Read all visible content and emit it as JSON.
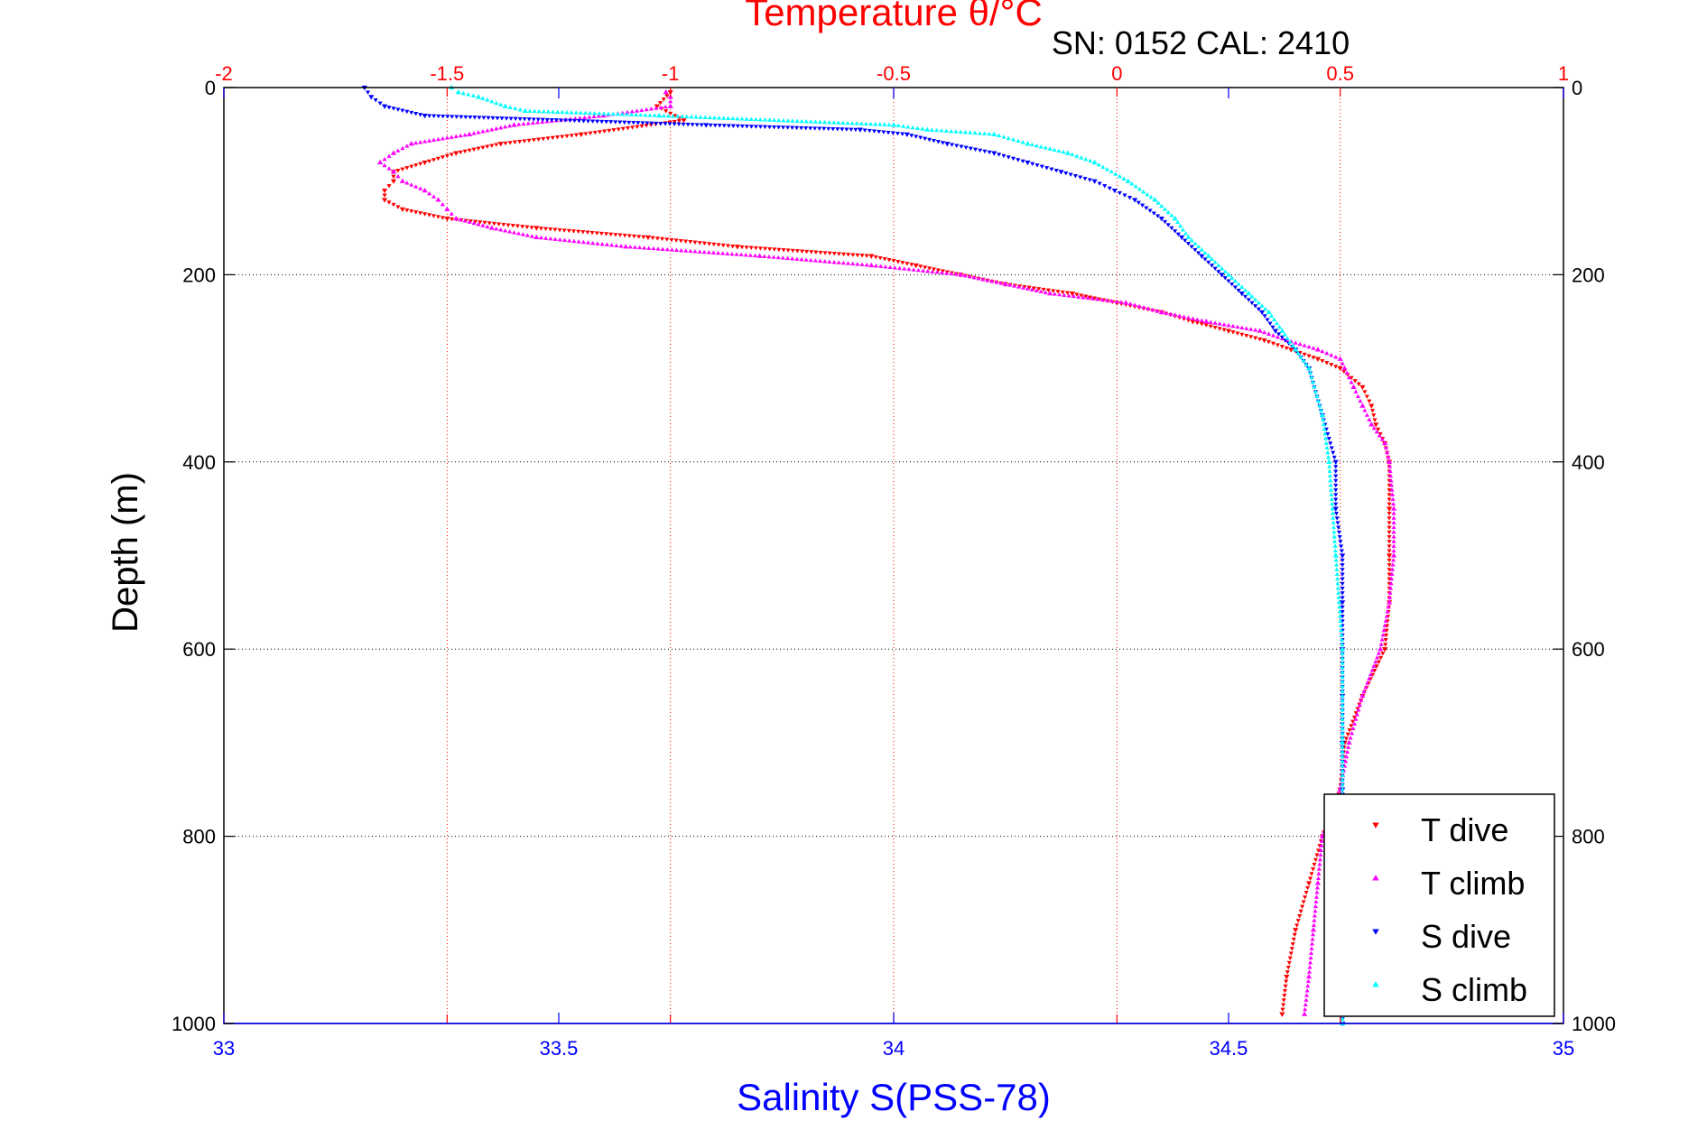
{
  "chart_data": {
    "type": "scatter",
    "title": "Temperature θ/°C",
    "subtitle": "SN: 0152  CAL: 2410",
    "xlabel_top": "Temperature θ/°C",
    "xlabel_bottom": "Salinity S(PSS-78)",
    "ylabel": "Depth (m)",
    "temperature_axis": {
      "lim": [
        -2,
        1
      ],
      "ticks": [
        -2,
        -1.5,
        -1,
        -0.5,
        0,
        0.5,
        1
      ],
      "tick_labels": [
        "-2",
        "-1.5",
        "-1",
        "-0.5",
        "0",
        "0.5",
        "1"
      ],
      "color": "#ff0000"
    },
    "salinity_axis": {
      "lim": [
        33,
        35
      ],
      "ticks": [
        33,
        33.5,
        34,
        34.5,
        35
      ],
      "tick_labels": [
        "33",
        "33.5",
        "34",
        "34.5",
        "35"
      ],
      "color": "#0000ff"
    },
    "depth_axis": {
      "lim": [
        0,
        1000
      ],
      "reversed": true,
      "ticks": [
        0,
        200,
        400,
        600,
        800,
        1000
      ],
      "tick_labels": [
        "0",
        "200",
        "400",
        "600",
        "800",
        "1000"
      ]
    },
    "grid": true,
    "legend_position": "bottom-right",
    "series": [
      {
        "name": "T dive",
        "axis": "temperature",
        "color": "#ff0000",
        "marker": "triangle-down",
        "depth": [
          5,
          20,
          35,
          50,
          60,
          70,
          80,
          90,
          100,
          110,
          120,
          130,
          140,
          150,
          160,
          170,
          180,
          190,
          200,
          210,
          220,
          230,
          240,
          250,
          260,
          270,
          280,
          290,
          300,
          320,
          340,
          360,
          380,
          400,
          450,
          500,
          550,
          600,
          650,
          700,
          750,
          800,
          850,
          900,
          950,
          990
        ],
        "values": [
          -1.0,
          -1.03,
          -0.97,
          -1.2,
          -1.38,
          -1.48,
          -1.55,
          -1.62,
          -1.62,
          -1.64,
          -1.64,
          -1.6,
          -1.5,
          -1.3,
          -1.05,
          -0.85,
          -0.55,
          -0.45,
          -0.35,
          -0.25,
          -0.1,
          0.0,
          0.1,
          0.17,
          0.25,
          0.33,
          0.39,
          0.45,
          0.5,
          0.55,
          0.57,
          0.58,
          0.6,
          0.61,
          0.61,
          0.61,
          0.61,
          0.6,
          0.55,
          0.51,
          0.5,
          0.46,
          0.43,
          0.4,
          0.38,
          0.37
        ]
      },
      {
        "name": "T climb",
        "axis": "temperature",
        "color": "#ff00ff",
        "marker": "triangle-up",
        "depth": [
          990,
          950,
          900,
          850,
          800,
          750,
          700,
          650,
          600,
          550,
          500,
          450,
          400,
          380,
          360,
          340,
          320,
          300,
          290,
          280,
          270,
          260,
          250,
          240,
          230,
          220,
          210,
          200,
          190,
          180,
          170,
          160,
          150,
          140,
          130,
          120,
          110,
          100,
          90,
          80,
          70,
          60,
          50,
          40,
          30,
          20,
          10,
          5
        ],
        "values": [
          0.42,
          0.43,
          0.44,
          0.45,
          0.46,
          0.5,
          0.52,
          0.55,
          0.59,
          0.61,
          0.62,
          0.62,
          0.61,
          0.6,
          0.57,
          0.55,
          0.53,
          0.51,
          0.5,
          0.45,
          0.38,
          0.32,
          0.2,
          0.1,
          0.02,
          -0.15,
          -0.25,
          -0.35,
          -0.55,
          -0.8,
          -1.1,
          -1.3,
          -1.4,
          -1.48,
          -1.5,
          -1.52,
          -1.55,
          -1.6,
          -1.62,
          -1.65,
          -1.62,
          -1.58,
          -1.45,
          -1.35,
          -1.15,
          -1.0,
          -1.0,
          -1.01
        ]
      },
      {
        "name": "S dive",
        "axis": "salinity",
        "color": "#0000ff",
        "marker": "triangle-down",
        "depth": [
          0,
          10,
          20,
          30,
          40,
          45,
          50,
          60,
          70,
          80,
          90,
          100,
          110,
          120,
          140,
          160,
          180,
          200,
          220,
          240,
          260,
          280,
          300,
          350,
          400,
          450,
          500,
          550,
          600,
          650,
          700,
          750,
          800,
          850,
          900,
          950,
          1000
        ],
        "values": [
          33.21,
          33.22,
          33.24,
          33.3,
          33.72,
          33.95,
          34.02,
          34.08,
          34.15,
          34.2,
          34.25,
          34.3,
          34.33,
          34.36,
          34.4,
          34.43,
          34.46,
          34.49,
          34.52,
          34.55,
          34.57,
          34.6,
          34.62,
          34.64,
          34.66,
          34.66,
          34.67,
          34.67,
          34.67,
          34.67,
          34.67,
          34.67,
          34.67,
          34.67,
          34.67,
          34.67,
          34.67
        ]
      },
      {
        "name": "S climb",
        "axis": "salinity",
        "color": "#00ffff",
        "marker": "triangle-up",
        "depth": [
          1000,
          900,
          800,
          700,
          600,
          500,
          400,
          350,
          300,
          280,
          260,
          240,
          220,
          200,
          180,
          160,
          140,
          120,
          100,
          80,
          70,
          60,
          50,
          45,
          40,
          30,
          25,
          20,
          10,
          5,
          0
        ],
        "values": [
          34.67,
          34.67,
          34.67,
          34.67,
          34.67,
          34.66,
          34.65,
          34.64,
          34.62,
          34.6,
          34.58,
          34.56,
          34.53,
          34.5,
          34.47,
          34.44,
          34.42,
          34.39,
          34.35,
          34.3,
          34.26,
          34.2,
          34.15,
          34.05,
          34.0,
          33.65,
          33.45,
          33.42,
          33.38,
          33.35,
          33.34
        ]
      }
    ]
  }
}
